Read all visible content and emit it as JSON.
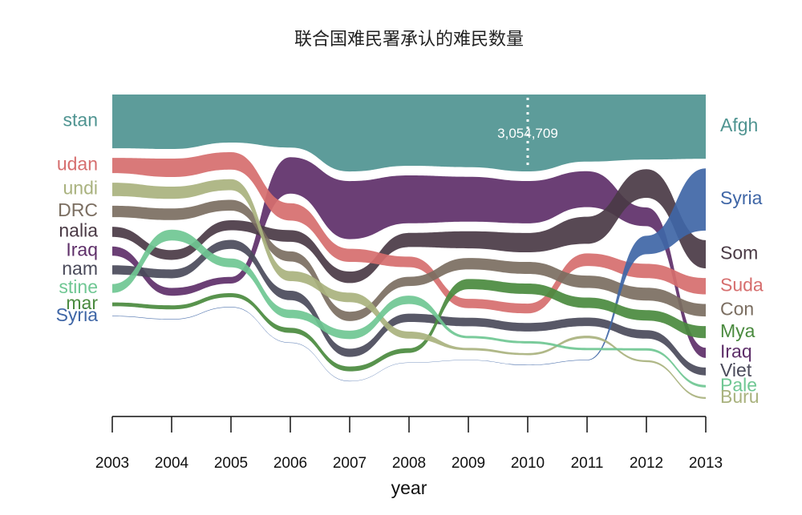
{
  "chart_data": {
    "type": "area",
    "title": "联合国难民署承认的难民数量",
    "xlabel": "year",
    "ylabel": "",
    "x": [
      2003,
      2004,
      2005,
      2006,
      2007,
      2008,
      2009,
      2010,
      2011,
      2012,
      2013
    ],
    "grid": false,
    "legend": "none",
    "annotation": {
      "x": 2010,
      "series": "Afghanistan",
      "text": "3,054,709"
    },
    "series": [
      {
        "name": "Afghanistan",
        "color": "#4f9491",
        "values": [
          2136000,
          2166000,
          1909000,
          2108000,
          3058000,
          2833000,
          2887000,
          3054709,
          2664000,
          2586000,
          2556000
        ],
        "left_label": "stan",
        "right_label": "Afgh"
      },
      {
        "name": "Syria",
        "color": "#3f66a6",
        "values": [
          20000,
          20000,
          20000,
          15000,
          15000,
          15000,
          15000,
          18000,
          20000,
          729000,
          2468000
        ],
        "left_label": "Syria",
        "right_label": "Syria"
      },
      {
        "name": "Somalia",
        "color": "#4a3a45",
        "values": [
          402000,
          389000,
          395000,
          464000,
          457000,
          561000,
          678000,
          770000,
          1077000,
          1137000,
          1121000
        ],
        "left_label": "nalia",
        "right_label": "Som"
      },
      {
        "name": "Sudan",
        "color": "#d66e6e",
        "values": [
          606000,
          731000,
          693000,
          686000,
          523000,
          419000,
          368000,
          388000,
          500000,
          569000,
          649000
        ],
        "left_label": "udan",
        "right_label": "Suda"
      },
      {
        "name": "DRC",
        "color": "#7b6e61",
        "values": [
          453000,
          462000,
          430000,
          401000,
          370000,
          368000,
          456000,
          476000,
          491000,
          509000,
          499000
        ],
        "left_label": "DRC",
        "right_label": "Con"
      },
      {
        "name": "Iraq",
        "color": "#5e2f69",
        "values": [
          368000,
          311000,
          262000,
          1450000,
          2309000,
          1903000,
          1785000,
          1683000,
          1428000,
          746000,
          401000
        ],
        "left_label": "Iraq",
        "right_label": "Iraq"
      },
      {
        "name": "Viet Nam",
        "color": "#4a4a5a",
        "values": [
          363000,
          350000,
          358000,
          374000,
          327000,
          328000,
          339000,
          338000,
          337000,
          336000,
          314000
        ],
        "left_label": "nam",
        "right_label": "Viet"
      },
      {
        "name": "Myanmar",
        "color": "#4a8a3e",
        "values": [
          151000,
          161000,
          164000,
          203000,
          191000,
          184000,
          406000,
          416000,
          414000,
          415000,
          480000
        ],
        "left_label": "mar",
        "right_label": "Mya"
      },
      {
        "name": "Palestine",
        "color": "#6fc793",
        "values": [
          350000,
          428000,
          350000,
          334000,
          335000,
          334000,
          95000,
          94000,
          93000,
          95000,
          97000
        ],
        "left_label": "stine",
        "right_label": "Pale"
      },
      {
        "name": "Burundi",
        "color": "#a9b27e",
        "values": [
          531000,
          485000,
          439000,
          397000,
          375000,
          281000,
          94000,
          84000,
          101000,
          73000,
          72000
        ],
        "left_label": "undi",
        "right_label": "Buru"
      }
    ]
  }
}
